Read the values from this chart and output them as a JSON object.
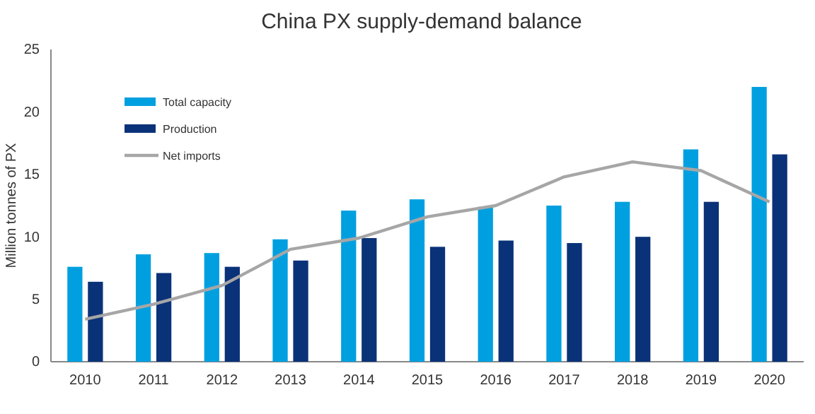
{
  "chart_data": {
    "type": "bar",
    "title": "China PX supply-demand balance",
    "ylabel": "Million tonnes of PX",
    "categories": [
      "2010",
      "2011",
      "2012",
      "2013",
      "2014",
      "2015",
      "2016",
      "2017",
      "2018",
      "2019",
      "2020"
    ],
    "series": [
      {
        "name": "Total capacity",
        "color": "#00a0e0",
        "values": [
          7.6,
          8.6,
          8.7,
          9.8,
          12.1,
          13.0,
          12.4,
          12.5,
          12.8,
          17.0,
          22.0
        ]
      },
      {
        "name": "Production",
        "color": "#0a3278",
        "values": [
          6.4,
          7.1,
          7.6,
          8.1,
          9.9,
          9.2,
          9.7,
          9.5,
          10.0,
          12.8,
          16.6
        ]
      },
      {
        "name": "Net imports",
        "type": "line",
        "color": "#a6a6a6",
        "values": [
          3.4,
          4.6,
          6.1,
          9.0,
          9.9,
          11.6,
          12.5,
          14.8,
          16.0,
          15.3,
          12.8
        ]
      }
    ],
    "ylim": [
      0,
      25
    ],
    "yticks": [
      0,
      5,
      10,
      15,
      20,
      25
    ],
    "grid": false,
    "legend": "top left",
    "marker": "none",
    "line_style": "solid"
  }
}
